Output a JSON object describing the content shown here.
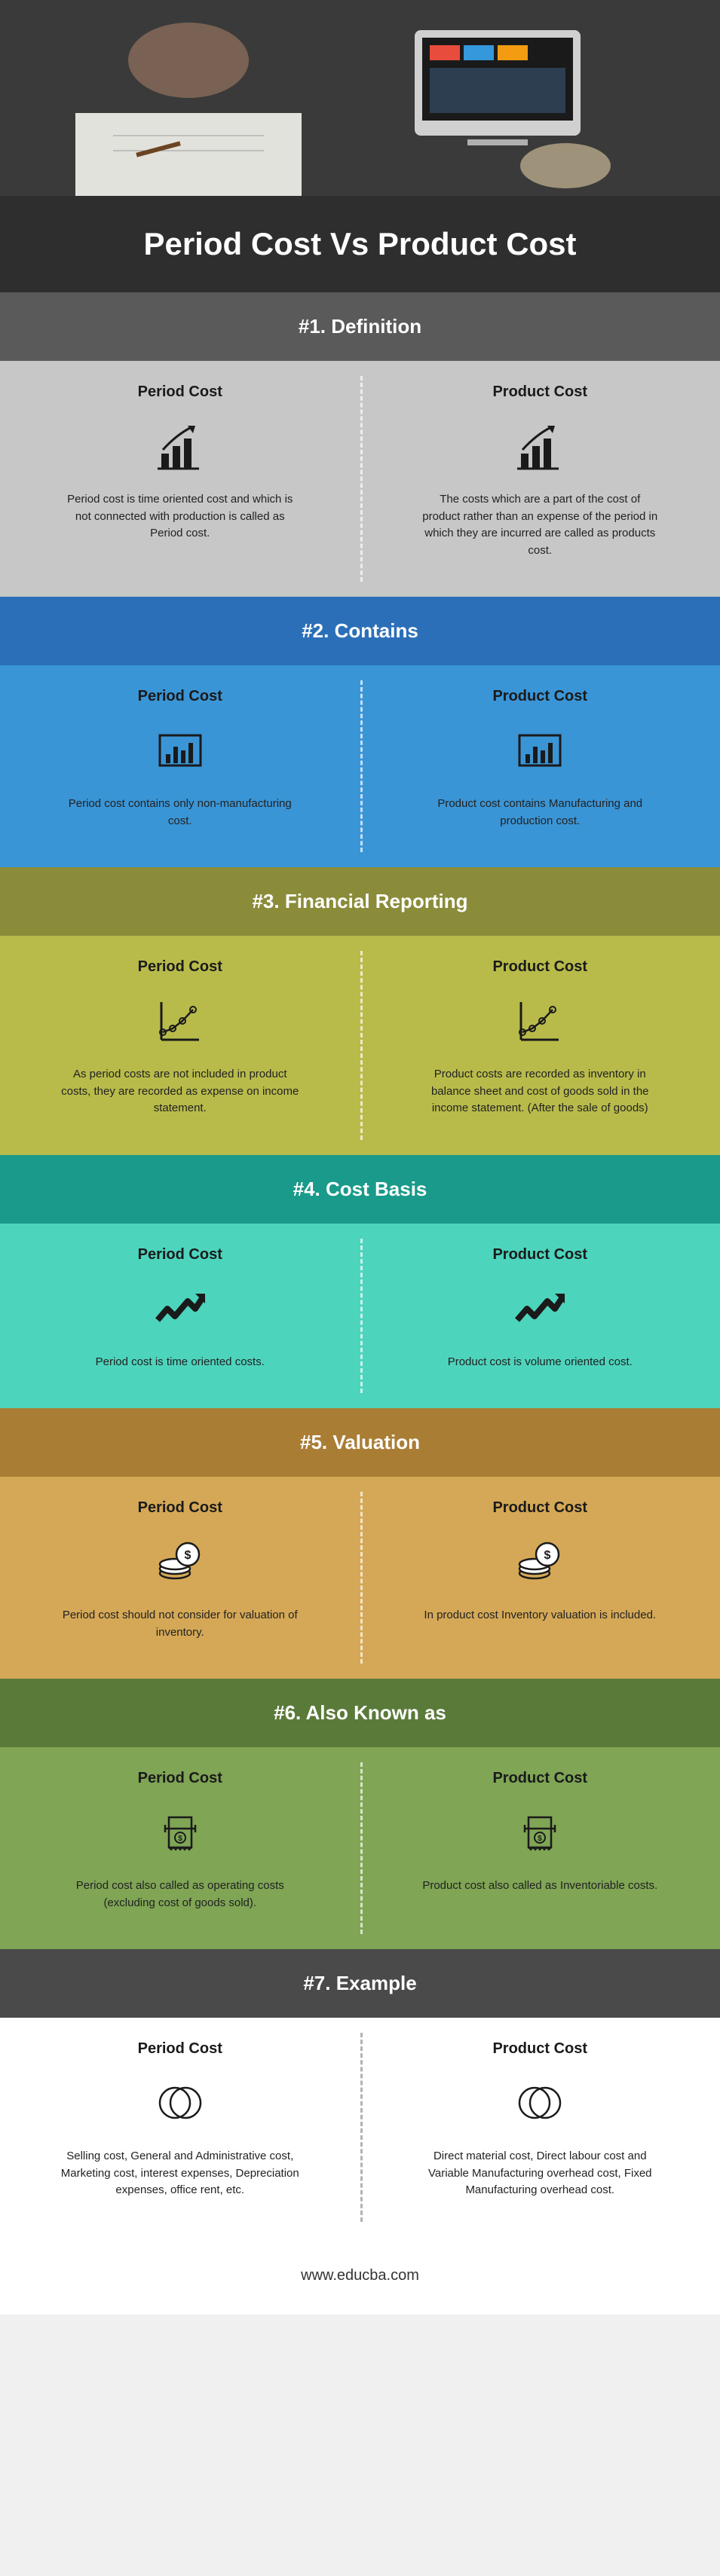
{
  "title": "Period Cost Vs Product Cost",
  "footer": "www.educba.com",
  "left_label": "Period Cost",
  "right_label": "Product Cost",
  "sections": [
    {
      "num": "#1.",
      "name": "Definition",
      "header_bg": "#5a5a5a",
      "body_bg": "#c7c7c7",
      "icon": "barchart_arrow",
      "left": "Period cost is time oriented cost and which is not connected with production is called as Period cost.",
      "right": "The costs which are a part of the cost of product rather than an expense of the period in which they are incurred are called as products cost."
    },
    {
      "num": "#2.",
      "name": "Contains",
      "header_bg": "#2b6fb8",
      "body_bg": "#3a95d6",
      "icon": "bar_box",
      "left": "Period cost contains only non-manufacturing cost.",
      "right": "Product cost contains Manufacturing and production cost."
    },
    {
      "num": "#3.",
      "name": "Financial Reporting",
      "header_bg": "#8a8c3a",
      "body_bg": "#b8bb4a",
      "icon": "line_graph",
      "left": "As period costs are not included in product costs, they are recorded as expense on income statement.",
      "right": "Product costs are recorded as inventory in balance sheet and cost of goods sold in the income statement. (After the sale of goods)"
    },
    {
      "num": "#4.",
      "name": "Cost Basis",
      "header_bg": "#1a9a8a",
      "body_bg": "#4dd4bd",
      "icon": "trend_arrow",
      "left": "Period cost is time oriented costs.",
      "right": "Product cost is volume oriented cost."
    },
    {
      "num": "#5.",
      "name": "Valuation",
      "header_bg": "#aa7d35",
      "body_bg": "#d4a856",
      "icon": "coins",
      "left": "Period cost should not consider for valuation of inventory.",
      "right": "In product cost Inventory valuation is included."
    },
    {
      "num": "#6.",
      "name": "Also Known as",
      "header_bg": "#5a7a3a",
      "body_bg": "#7fa555",
      "icon": "receipt",
      "left": "Period cost also called as operating costs (excluding cost of goods sold).",
      "right": "Product cost also called as Inventoriable costs."
    },
    {
      "num": "#7.",
      "name": "Example",
      "header_bg": "#4a4a4a",
      "body_bg": "#ffffff",
      "icon": "venn",
      "left": "Selling cost, General and Administrative cost, Marketing cost, interest expenses, Depreciation expenses, office rent, etc.",
      "right": "Direct material cost, Direct labour cost and Variable Manufacturing overhead cost, Fixed Manufacturing overhead cost."
    }
  ],
  "icons": {
    "stroke": "#1a1a1a",
    "fill": "#1a1a1a"
  }
}
